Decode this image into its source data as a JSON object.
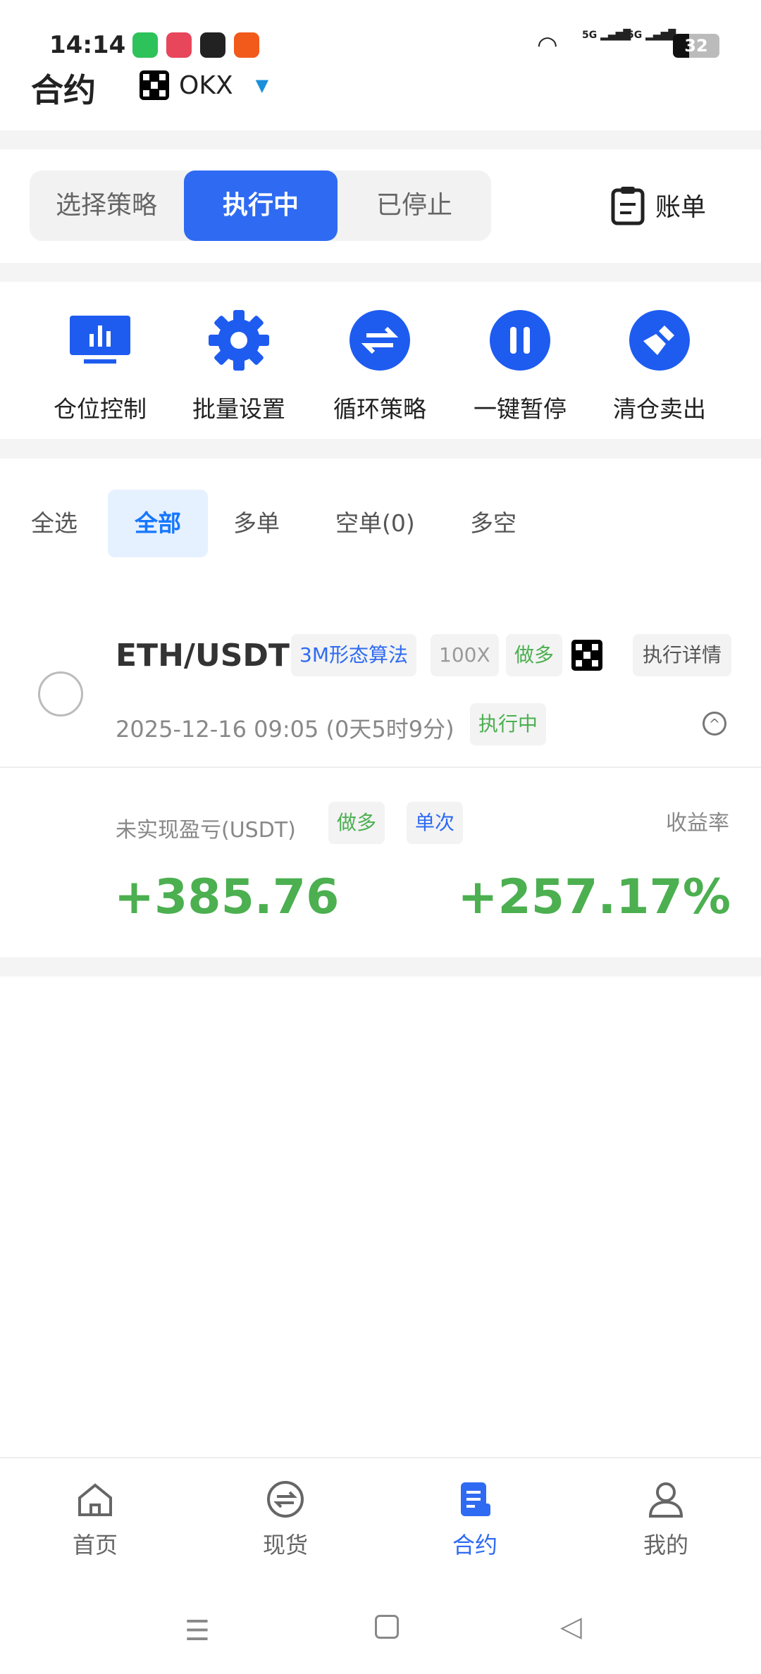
{
  "status_bar": {
    "time": "14:14",
    "battery": "32",
    "network": [
      "5G",
      "5G"
    ]
  },
  "header": {
    "title": "合约",
    "exchange": "OKX"
  },
  "segment": {
    "tabs": [
      "选择策略",
      "执行中",
      "已停止"
    ],
    "active": 1,
    "bill_label": "账单"
  },
  "tools": [
    {
      "label": "仓位控制",
      "icon": "chart-board-icon"
    },
    {
      "label": "批量设置",
      "icon": "gear-icon"
    },
    {
      "label": "循环策略",
      "icon": "swap-icon"
    },
    {
      "label": "一键暂停",
      "icon": "pause-icon"
    },
    {
      "label": "清仓卖出",
      "icon": "broom-icon"
    }
  ],
  "filters": {
    "select_all": "全选",
    "tabs": [
      "全部",
      "多单",
      "空单(0)",
      "多空"
    ],
    "active": 0
  },
  "position": {
    "pair": "ETH/USDT",
    "algo_tag": "3M形态算法",
    "leverage": "100X",
    "direction": "做多",
    "detail_button": "执行详情",
    "start_time": "2025-12-16 09:05 (0天5时9分)",
    "status": "执行中",
    "pnl_label": "未实现盈亏(USDT)",
    "pnl_direction": "做多",
    "pnl_mode": "单次",
    "yield_label": "收益率",
    "pnl_value": "+385.76",
    "yield_value": "+257.17%"
  },
  "bottom_nav": {
    "items": [
      "首页",
      "现货",
      "合约",
      "我的"
    ],
    "active": 2
  },
  "colors": {
    "accent": "#2f6bf2",
    "profit": "#4caf50",
    "tab_active": "#1677ff"
  }
}
